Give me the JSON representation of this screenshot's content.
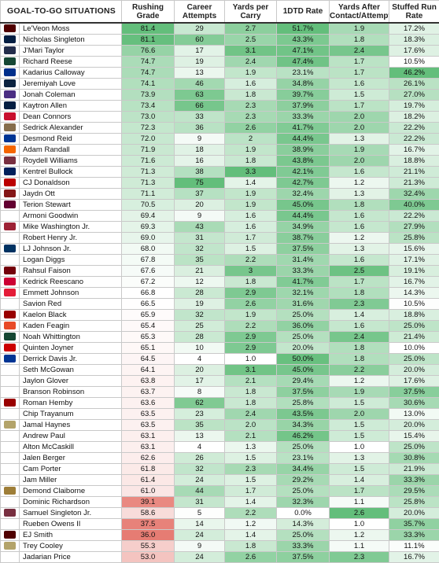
{
  "chart_data": {
    "type": "table",
    "title": "GOAL-TO-GO SITUATIONS",
    "columns": [
      "Rushing Grade",
      "Career Attempts",
      "Yards per Carry",
      "1DTD Rate",
      "Yards After Contact/Attempt",
      "Stuffed Run Rate"
    ],
    "rows": [
      {
        "name": "Le'Veon Moss",
        "team": "Texas A&M",
        "logo_color": "#500000",
        "values": [
          "81.4",
          "29",
          "2.7",
          "51.7%",
          "1.9",
          "17.2%"
        ]
      },
      {
        "name": "Nicholas Singleton",
        "team": "Penn State",
        "logo_color": "#041E42",
        "values": [
          "81.1",
          "60",
          "2.5",
          "43.3%",
          "1.8",
          "18.3%"
        ]
      },
      {
        "name": "J'Mari Taylor",
        "team": "Virginia",
        "logo_color": "#232D4B",
        "values": [
          "76.6",
          "17",
          "3.1",
          "47.1%",
          "2.4",
          "17.6%"
        ]
      },
      {
        "name": "Richard Reese",
        "team": "Baylor",
        "logo_color": "#154734",
        "values": [
          "74.7",
          "19",
          "2.4",
          "47.4%",
          "1.7",
          "10.5%"
        ]
      },
      {
        "name": "Kadarius Calloway",
        "team": "Louisiana Tech",
        "logo_color": "#002F8B",
        "values": [
          "74.7",
          "13",
          "1.9",
          "23.1%",
          "1.7",
          "46.2%"
        ]
      },
      {
        "name": "Jeremiyah Love",
        "team": "Notre Dame",
        "logo_color": "#0C2340",
        "values": [
          "74.1",
          "46",
          "1.6",
          "34.8%",
          "1.6",
          "26.1%"
        ]
      },
      {
        "name": "Jonah Coleman",
        "team": "Washington",
        "logo_color": "#4B2E83",
        "values": [
          "73.9",
          "63",
          "1.8",
          "39.7%",
          "1.5",
          "27.0%"
        ]
      },
      {
        "name": "Kaytron Allen",
        "team": "Penn State",
        "logo_color": "#041E42",
        "values": [
          "73.4",
          "66",
          "2.3",
          "37.9%",
          "1.7",
          "19.7%"
        ]
      },
      {
        "name": "Dean Connors",
        "team": "Houston",
        "logo_color": "#C8102E",
        "values": [
          "73.0",
          "33",
          "2.3",
          "33.3%",
          "2.0",
          "18.2%"
        ]
      },
      {
        "name": "Sedrick Alexander",
        "team": "Vanderbilt",
        "logo_color": "#866D4B",
        "values": [
          "72.3",
          "36",
          "2.6",
          "41.7%",
          "2.0",
          "22.2%"
        ]
      },
      {
        "name": "Desmond Reid",
        "team": "Pitt",
        "logo_color": "#003594",
        "values": [
          "72.0",
          "9",
          "2",
          "44.4%",
          "1.3",
          "22.2%"
        ]
      },
      {
        "name": "Adam Randall",
        "team": "Clemson",
        "logo_color": "#F56600",
        "values": [
          "71.9",
          "18",
          "1.9",
          "38.9%",
          "1.9",
          "16.7%"
        ]
      },
      {
        "name": "Roydell Williams",
        "team": "Florida State",
        "logo_color": "#782F40",
        "values": [
          "71.6",
          "16",
          "1.8",
          "43.8%",
          "2.0",
          "18.8%"
        ]
      },
      {
        "name": "Kentrel Bullock",
        "team": "South Alabama",
        "logo_color": "#00205B",
        "values": [
          "71.3",
          "38",
          "3.3",
          "42.1%",
          "1.6",
          "21.1%"
        ]
      },
      {
        "name": "CJ Donaldson",
        "team": "Ohio State",
        "logo_color": "#BB0000",
        "values": [
          "71.3",
          "75",
          "1.4",
          "42.7%",
          "1.2",
          "21.3%"
        ]
      },
      {
        "name": "Jaydn Ott",
        "team": "Oklahoma",
        "logo_color": "#841617",
        "values": [
          "71.1",
          "37",
          "1.9",
          "32.4%",
          "1.3",
          "32.4%"
        ]
      },
      {
        "name": "Terion Stewart",
        "team": "Virginia Tech",
        "logo_color": "#630031",
        "values": [
          "70.5",
          "20",
          "1.9",
          "45.0%",
          "1.8",
          "40.0%"
        ]
      },
      {
        "name": "Armoni Goodwin",
        "team": "",
        "logo_color": "#FFFFFF",
        "values": [
          "69.4",
          "9",
          "1.6",
          "44.4%",
          "1.6",
          "22.2%"
        ]
      },
      {
        "name": "Mike Washington Jr.",
        "team": "Arkansas",
        "logo_color": "#9D2235",
        "values": [
          "69.3",
          "43",
          "1.6",
          "34.9%",
          "1.6",
          "27.9%"
        ]
      },
      {
        "name": "Robert Henry Jr.",
        "team": "",
        "logo_color": "#FFFFFF",
        "values": [
          "69.0",
          "31",
          "1.7",
          "38.7%",
          "1.2",
          "25.8%"
        ]
      },
      {
        "name": "LJ Johnson Jr.",
        "team": "California",
        "logo_color": "#003262",
        "values": [
          "68.0",
          "32",
          "1.5",
          "37.5%",
          "1.3",
          "15.6%"
        ]
      },
      {
        "name": "Logan Diggs",
        "team": "",
        "logo_color": "#FFFFFF",
        "values": [
          "67.8",
          "35",
          "2.2",
          "31.4%",
          "1.6",
          "17.1%"
        ]
      },
      {
        "name": "Rahsul Faison",
        "team": "South Carolina",
        "logo_color": "#73000A",
        "values": [
          "67.6",
          "21",
          "3",
          "33.3%",
          "2.5",
          "19.1%"
        ]
      },
      {
        "name": "Kedrick Reescano",
        "team": "Arizona",
        "logo_color": "#CC0033",
        "values": [
          "67.2",
          "12",
          "1.8",
          "41.7%",
          "1.7",
          "16.7%"
        ]
      },
      {
        "name": "Emmett Johnson",
        "team": "Nebraska",
        "logo_color": "#E41C38",
        "values": [
          "66.8",
          "28",
          "2.9",
          "32.1%",
          "1.8",
          "14.3%"
        ]
      },
      {
        "name": "Savion Red",
        "team": "",
        "logo_color": "#FFFFFF",
        "values": [
          "66.5",
          "19",
          "2.6",
          "31.6%",
          "2.3",
          "10.5%"
        ]
      },
      {
        "name": "Kaelon Black",
        "team": "Indiana",
        "logo_color": "#990000",
        "values": [
          "65.9",
          "32",
          "1.9",
          "25.0%",
          "1.4",
          "18.8%"
        ]
      },
      {
        "name": "Kaden Feagin",
        "team": "Illinois",
        "logo_color": "#E84A27",
        "values": [
          "65.4",
          "25",
          "2.2",
          "36.0%",
          "1.6",
          "25.0%"
        ]
      },
      {
        "name": "Noah Whittington",
        "team": "Oregon",
        "logo_color": "#154733",
        "values": [
          "65.3",
          "28",
          "2.9",
          "25.0%",
          "2.4",
          "21.4%"
        ]
      },
      {
        "name": "Quinten Joyner",
        "team": "Texas Tech",
        "logo_color": "#CC0000",
        "values": [
          "65.1",
          "10",
          "2.9",
          "20.0%",
          "1.8",
          "10.0%"
        ]
      },
      {
        "name": "Derrick Davis Jr.",
        "team": "Pitt",
        "logo_color": "#003594",
        "values": [
          "64.5",
          "4",
          "1.0",
          "50.0%",
          "1.8",
          "25.0%"
        ]
      },
      {
        "name": "Seth McGowan",
        "team": "",
        "logo_color": "#FFFFFF",
        "values": [
          "64.1",
          "20",
          "3.1",
          "45.0%",
          "2.2",
          "20.0%"
        ]
      },
      {
        "name": "Jaylon Glover",
        "team": "",
        "logo_color": "#FFFFFF",
        "values": [
          "63.8",
          "17",
          "2.1",
          "29.4%",
          "1.2",
          "17.6%"
        ]
      },
      {
        "name": "Branson Robinson",
        "team": "",
        "logo_color": "#FFFFFF",
        "values": [
          "63.7",
          "8",
          "1.8",
          "37.5%",
          "1.9",
          "37.5%"
        ]
      },
      {
        "name": "Roman Hemby",
        "team": "Indiana",
        "logo_color": "#990000",
        "values": [
          "63.6",
          "62",
          "1.8",
          "25.8%",
          "1.5",
          "30.6%"
        ]
      },
      {
        "name": "Chip Trayanum",
        "team": "",
        "logo_color": "#FFFFFF",
        "values": [
          "63.5",
          "23",
          "2.4",
          "43.5%",
          "2.0",
          "13.0%"
        ]
      },
      {
        "name": "Jamal Haynes",
        "team": "Georgia Tech",
        "logo_color": "#B3A369",
        "values": [
          "63.5",
          "35",
          "2.0",
          "34.3%",
          "1.5",
          "20.0%"
        ]
      },
      {
        "name": "Andrew Paul",
        "team": "",
        "logo_color": "#FFFFFF",
        "values": [
          "63.1",
          "13",
          "2.1",
          "46.2%",
          "1.5",
          "15.4%"
        ]
      },
      {
        "name": "Alton McCaskill",
        "team": "",
        "logo_color": "#FFFFFF",
        "values": [
          "63.1",
          "4",
          "1.3",
          "25.0%",
          "1.0",
          "25.0%"
        ]
      },
      {
        "name": "Jalen Berger",
        "team": "",
        "logo_color": "#FFFFFF",
        "values": [
          "62.6",
          "26",
          "1.5",
          "23.1%",
          "1.3",
          "30.8%"
        ]
      },
      {
        "name": "Cam Porter",
        "team": "",
        "logo_color": "#FFFFFF",
        "values": [
          "61.8",
          "32",
          "2.3",
          "34.4%",
          "1.5",
          "21.9%"
        ]
      },
      {
        "name": "Jam Miller",
        "team": "",
        "logo_color": "#FFFFFF",
        "values": [
          "61.4",
          "24",
          "1.5",
          "29.2%",
          "1.4",
          "33.3%"
        ]
      },
      {
        "name": "Demond Claiborne",
        "team": "Wake Forest",
        "logo_color": "#9E7E38",
        "values": [
          "61.0",
          "44",
          "1.7",
          "25.0%",
          "1.7",
          "29.5%"
        ]
      },
      {
        "name": "Dominic Richardson",
        "team": "",
        "logo_color": "#FFFFFF",
        "values": [
          "39.1",
          "31",
          "1.4",
          "32.3%",
          "1.1",
          "25.8%"
        ]
      },
      {
        "name": "Samuel Singleton Jr.",
        "team": "Florida State",
        "logo_color": "#782F40",
        "values": [
          "58.6",
          "5",
          "2.2",
          "0.0%",
          "2.6",
          "20.0%"
        ]
      },
      {
        "name": "Rueben Owens II",
        "team": "",
        "logo_color": "#FFFFFF",
        "values": [
          "37.5",
          "14",
          "1.2",
          "14.3%",
          "1.0",
          "35.7%"
        ]
      },
      {
        "name": "EJ Smith",
        "team": "Texas A&M",
        "logo_color": "#500000",
        "values": [
          "36.0",
          "24",
          "1.4",
          "25.0%",
          "1.2",
          "33.3%"
        ]
      },
      {
        "name": "Trey Cooley",
        "team": "Georgia Tech",
        "logo_color": "#B3A369",
        "values": [
          "55.3",
          "9",
          "1.8",
          "33.3%",
          "1.1",
          "11.1%"
        ]
      },
      {
        "name": "Jadarian Price",
        "team": "",
        "logo_color": "#FFFFFF",
        "values": [
          "53.0",
          "24",
          "2.6",
          "37.5%",
          "2.3",
          "16.7%"
        ]
      }
    ],
    "color_scale": {
      "high": "#63BE7B",
      "low": "#FFFFFF",
      "grade_low": "#E67C73"
    }
  }
}
